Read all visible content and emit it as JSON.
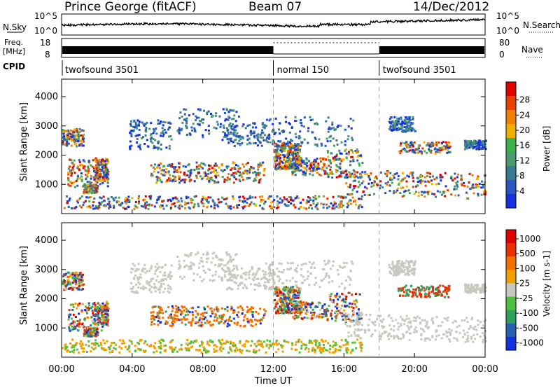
{
  "header": {
    "station": "Prince George (fitACF)",
    "beam": "Beam 07",
    "date": "14/Dec/2012"
  },
  "strips": {
    "sky_label": "N.Sky",
    "search_label": "N.Search",
    "freq_label_line1": "Freq.",
    "freq_label_line2": "[MHz]",
    "nave_label": "Nave",
    "cpid_label": "CPID",
    "sky_ticks": [
      "10^5",
      "10^0"
    ],
    "freq_ticks": [
      "18",
      "8"
    ],
    "nave_ticks": [
      "80",
      "0"
    ],
    "cpid_segments": [
      {
        "label": "twofsound 3501",
        "start": 0,
        "end": 12
      },
      {
        "label": "normal 150",
        "start": 12,
        "end": 18
      },
      {
        "label": "twofsound 3501",
        "start": 18,
        "end": 24
      }
    ]
  },
  "colors": {
    "power_scale": [
      "#1530e0",
      "#2a56c0",
      "#3a7a90",
      "#4a9a70",
      "#3cb04a",
      "#f0b000",
      "#f08000",
      "#e84000",
      "#e00000"
    ],
    "velocity_scale": [
      "#1530e0",
      "#2a60b0",
      "#30a060",
      "#50c040",
      "#c8c8c0",
      "#f0a000",
      "#f07000",
      "#e83000",
      "#e00000"
    ]
  },
  "chart_data": [
    {
      "type": "heatmap",
      "panel": "power",
      "ylabel": "Slant Range [km]",
      "yticks": [
        1000,
        2000,
        3000,
        4000
      ],
      "ylim": [
        0,
        4600
      ],
      "xlim": [
        0,
        24
      ],
      "colorbar_label": "Power [dB]",
      "colorbar_ticks": [
        "28",
        "24",
        "20",
        "16",
        "12",
        "8",
        "4"
      ],
      "markers": [
        12,
        18
      ]
    },
    {
      "type": "heatmap",
      "panel": "velocity",
      "ylabel": "Slant Range [km]",
      "yticks": [
        1000,
        2000,
        3000,
        4000
      ],
      "ylim": [
        0,
        4600
      ],
      "xlim": [
        0,
        24
      ],
      "xlabel": "Time UT",
      "xticks": [
        "00:00",
        "04:00",
        "08:00",
        "12:00",
        "16:00",
        "20:00",
        "00:00"
      ],
      "colorbar_label": "Velocity [m s-1]",
      "colorbar_ticks": [
        "1000",
        "500",
        "100",
        "25",
        "-25",
        "-100",
        "-500",
        "-1000"
      ],
      "markers": [
        12,
        18
      ]
    }
  ]
}
